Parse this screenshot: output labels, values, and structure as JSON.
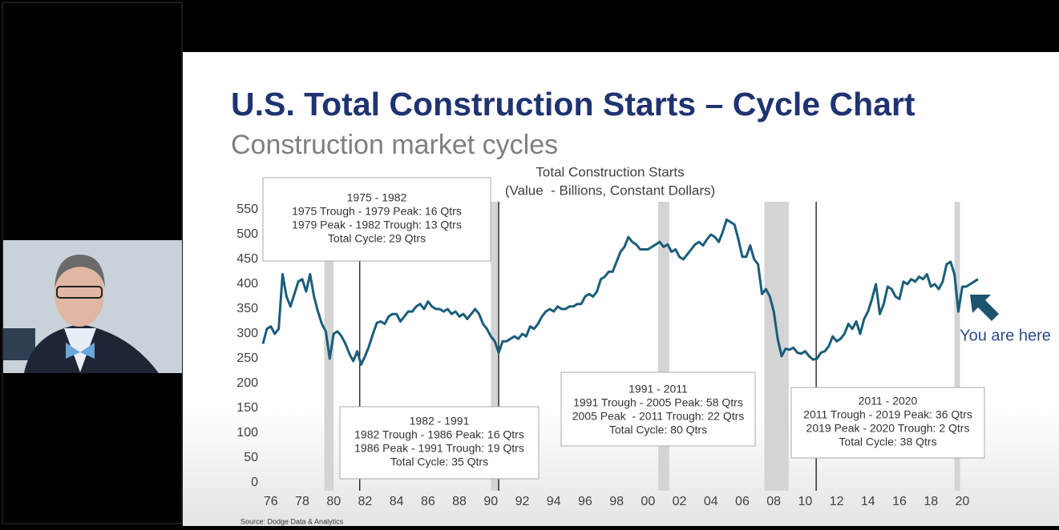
{
  "slide": {
    "title": "U.S. Total Construction Starts – Cycle Chart",
    "subtitle": "Construction market cycles",
    "source": "Source: Dodge Data & Analytics",
    "callout": "You are here"
  },
  "chart_data": {
    "type": "line",
    "title": "Total Construction Starts",
    "subtitle": "(Value  - Billions, Constant Dollars)",
    "color": "#1a5d7a",
    "xlim": [
      1975.5,
      2021.1
    ],
    "ylim": [
      0,
      566
    ],
    "yticks": [
      0,
      50,
      100,
      150,
      200,
      250,
      300,
      350,
      400,
      450,
      500,
      550
    ],
    "xticks": [
      {
        "value": 1976,
        "label": "76"
      },
      {
        "value": 1978,
        "label": "78"
      },
      {
        "value": 1980,
        "label": "80"
      },
      {
        "value": 1982,
        "label": "82"
      },
      {
        "value": 1984,
        "label": "84"
      },
      {
        "value": 1986,
        "label": "86"
      },
      {
        "value": 1988,
        "label": "88"
      },
      {
        "value": 1990,
        "label": "90"
      },
      {
        "value": 1992,
        "label": "92"
      },
      {
        "value": 1994,
        "label": "94"
      },
      {
        "value": 1996,
        "label": "96"
      },
      {
        "value": 1998,
        "label": "98"
      },
      {
        "value": 2000,
        "label": "00"
      },
      {
        "value": 2002,
        "label": "02"
      },
      {
        "value": 2004,
        "label": "04"
      },
      {
        "value": 2006,
        "label": "06"
      },
      {
        "value": 2008,
        "label": "08"
      },
      {
        "value": 2010,
        "label": "10"
      },
      {
        "value": 2012,
        "label": "12"
      },
      {
        "value": 2014,
        "label": "14"
      },
      {
        "value": 2016,
        "label": "16"
      },
      {
        "value": 2018,
        "label": "18"
      },
      {
        "value": 2020,
        "label": "20"
      }
    ],
    "recessions": [
      [
        1979.4,
        1980.0
      ],
      [
        1990.0,
        1990.5
      ],
      [
        2000.65,
        2001.35
      ],
      [
        2007.4,
        2008.95
      ],
      [
        2019.5,
        2019.85
      ]
    ],
    "cycle_markers": [
      1981.66,
      1990.5,
      2010.7
    ],
    "annotations": [
      [
        "1975 - 1982",
        "1975 Trough - 1979 Peak: 16 Qtrs",
        "1979 Peak - 1982 Trough: 13 Qtrs",
        "Total Cycle: 29 Qtrs"
      ],
      [
        "1982 - 1991",
        "1982 Trough - 1986 Peak: 16 Qtrs",
        "1986 Peak - 1991 Trough: 19 Qtrs",
        "Total Cycle: 35 Qtrs"
      ],
      [
        "1991 - 2011",
        "1991 Trough - 2005 Peak: 58 Qtrs",
        "2005 Peak  - 2011 Trough: 22 Qtrs",
        "Total Cycle: 80 Qtrs"
      ],
      [
        "2011 - 2020",
        "2011 Trough - 2019 Peak: 36 Qtrs",
        "2019 Peak - 2020 Trough: 2 Qtrs",
        "Total Cycle: 38 Qtrs"
      ]
    ],
    "x": [
      1975.5,
      1975.75,
      1976,
      1976.25,
      1976.5,
      1976.75,
      1977,
      1977.25,
      1977.5,
      1977.75,
      1978,
      1978.25,
      1978.5,
      1978.75,
      1979,
      1979.25,
      1979.5,
      1979.75,
      1980,
      1980.25,
      1980.5,
      1980.75,
      1981,
      1981.25,
      1981.5,
      1981.75,
      1982,
      1982.25,
      1982.5,
      1982.75,
      1983,
      1983.25,
      1983.5,
      1983.75,
      1984,
      1984.25,
      1984.5,
      1984.75,
      1985,
      1985.25,
      1985.5,
      1985.75,
      1986,
      1986.25,
      1986.5,
      1986.75,
      1987,
      1987.25,
      1987.5,
      1987.75,
      1988,
      1988.25,
      1988.5,
      1988.75,
      1989,
      1989.25,
      1989.5,
      1989.75,
      1990,
      1990.25,
      1990.5,
      1990.75,
      1991,
      1991.25,
      1991.5,
      1991.75,
      1992,
      1992.25,
      1992.5,
      1992.75,
      1993,
      1993.25,
      1993.5,
      1993.75,
      1994,
      1994.25,
      1994.5,
      1994.75,
      1995,
      1995.25,
      1995.5,
      1995.75,
      1996,
      1996.25,
      1996.5,
      1996.75,
      1997,
      1997.25,
      1997.5,
      1997.75,
      1998,
      1998.25,
      1998.5,
      1998.75,
      1999,
      1999.25,
      1999.5,
      1999.75,
      2000,
      2000.25,
      2000.5,
      2000.75,
      2001,
      2001.25,
      2001.5,
      2001.75,
      2002,
      2002.25,
      2002.5,
      2002.75,
      2003,
      2003.25,
      2003.5,
      2003.75,
      2004,
      2004.25,
      2004.5,
      2004.75,
      2005,
      2005.25,
      2005.5,
      2005.75,
      2006,
      2006.25,
      2006.5,
      2006.75,
      2007,
      2007.25,
      2007.5,
      2007.75,
      2008,
      2008.25,
      2008.5,
      2008.75,
      2009,
      2009.25,
      2009.5,
      2009.75,
      2010,
      2010.25,
      2010.5,
      2010.75,
      2011,
      2011.25,
      2011.5,
      2011.75,
      2012,
      2012.25,
      2012.5,
      2012.75,
      2013,
      2013.25,
      2013.5,
      2013.75,
      2014,
      2014.25,
      2014.5,
      2014.75,
      2015,
      2015.25,
      2015.5,
      2015.75,
      2016,
      2016.25,
      2016.5,
      2016.75,
      2017,
      2017.25,
      2017.5,
      2017.75,
      2018,
      2018.25,
      2018.5,
      2018.75,
      2019,
      2019.25,
      2019.5,
      2019.75,
      2020,
      2020.25,
      2020.5,
      2020.75,
      2021
    ],
    "values": [
      280,
      310,
      315,
      300,
      310,
      420,
      375,
      355,
      380,
      405,
      410,
      385,
      420,
      375,
      345,
      320,
      305,
      250,
      300,
      305,
      295,
      280,
      260,
      245,
      265,
      238,
      255,
      275,
      300,
      322,
      325,
      320,
      335,
      340,
      340,
      325,
      335,
      345,
      345,
      355,
      360,
      350,
      365,
      355,
      350,
      350,
      345,
      350,
      340,
      345,
      335,
      340,
      330,
      340,
      350,
      340,
      320,
      310,
      295,
      285,
      262,
      285,
      285,
      290,
      295,
      290,
      300,
      295,
      315,
      310,
      320,
      335,
      345,
      350,
      345,
      355,
      350,
      350,
      355,
      355,
      360,
      360,
      375,
      380,
      375,
      385,
      410,
      415,
      425,
      425,
      445,
      465,
      475,
      495,
      485,
      480,
      470,
      470,
      470,
      475,
      480,
      485,
      475,
      480,
      465,
      470,
      455,
      450,
      460,
      470,
      480,
      485,
      478,
      490,
      500,
      495,
      485,
      505,
      530,
      525,
      520,
      490,
      455,
      455,
      478,
      450,
      440,
      380,
      390,
      375,
      345,
      290,
      255,
      270,
      268,
      272,
      262,
      260,
      265,
      255,
      248,
      250,
      262,
      265,
      275,
      295,
      285,
      290,
      300,
      320,
      310,
      325,
      300,
      330,
      345,
      370,
      400,
      340,
      360,
      395,
      390,
      375,
      370,
      405,
      400,
      410,
      405,
      415,
      410,
      420,
      395,
      400,
      390,
      405,
      440,
      445,
      420,
      345,
      395,
      395,
      400,
      405,
      410
    ]
  }
}
